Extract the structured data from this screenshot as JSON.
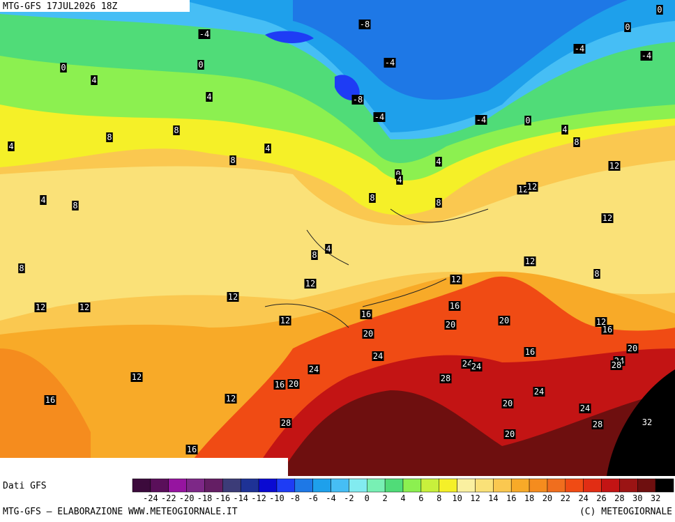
{
  "header": {
    "title": "MTG-GFS 17JUL2026 18Z"
  },
  "map": {
    "contour_labels": [
      "-4",
      "-8",
      "0",
      "0",
      "-4",
      "-4",
      "-4",
      "0",
      "0",
      "4",
      "4",
      "-8",
      "-4",
      "-4",
      "0",
      "4",
      "8",
      "8",
      "8",
      "4",
      "4",
      "8",
      "4",
      "12",
      "0",
      "4",
      "12",
      "12",
      "4",
      "8",
      "8",
      "8",
      "12",
      "4",
      "8",
      "12",
      "8",
      "8",
      "12",
      "12",
      "12",
      "12",
      "12",
      "16",
      "16",
      "12",
      "20",
      "20",
      "12",
      "16",
      "20",
      "20",
      "16",
      "24",
      "24",
      "28",
      "24",
      "24",
      "24",
      "12",
      "28",
      "16",
      "20",
      "24",
      "16",
      "12",
      "20",
      "24",
      "28",
      "28",
      "32",
      "20",
      "16"
    ]
  },
  "legend": {
    "source": "Dati GFS",
    "colors": [
      "#3c0a3c",
      "#5a0f5a",
      "#9614a0",
      "#7d2887",
      "#641e64",
      "#3c3c78",
      "#1e3296",
      "#0a0ad2",
      "#1e3cf5",
      "#1e78e6",
      "#1ea0eb",
      "#46bef5",
      "#82ebf0",
      "#78f0b4",
      "#50dc78",
      "#8cf050",
      "#c8f03c",
      "#f5f028",
      "#faf0a0",
      "#fae178",
      "#fac850",
      "#f8aa28",
      "#f58c1e",
      "#f06e1e",
      "#f04b14",
      "#e12d14",
      "#c31414",
      "#9b1414",
      "#6e0f0f",
      "#000000"
    ],
    "labels": [
      -24,
      -22,
      -20,
      -18,
      -16,
      -14,
      -12,
      -10,
      -8,
      -6,
      -4,
      -2,
      0,
      2,
      4,
      6,
      8,
      10,
      12,
      14,
      16,
      18,
      20,
      22,
      24,
      26,
      28,
      30,
      32
    ]
  },
  "footer": {
    "left": "MTG-GFS — ELABORAZIONE WWW.METEOGIORNALE.IT",
    "right": "(C) METEOGIORNALE"
  }
}
